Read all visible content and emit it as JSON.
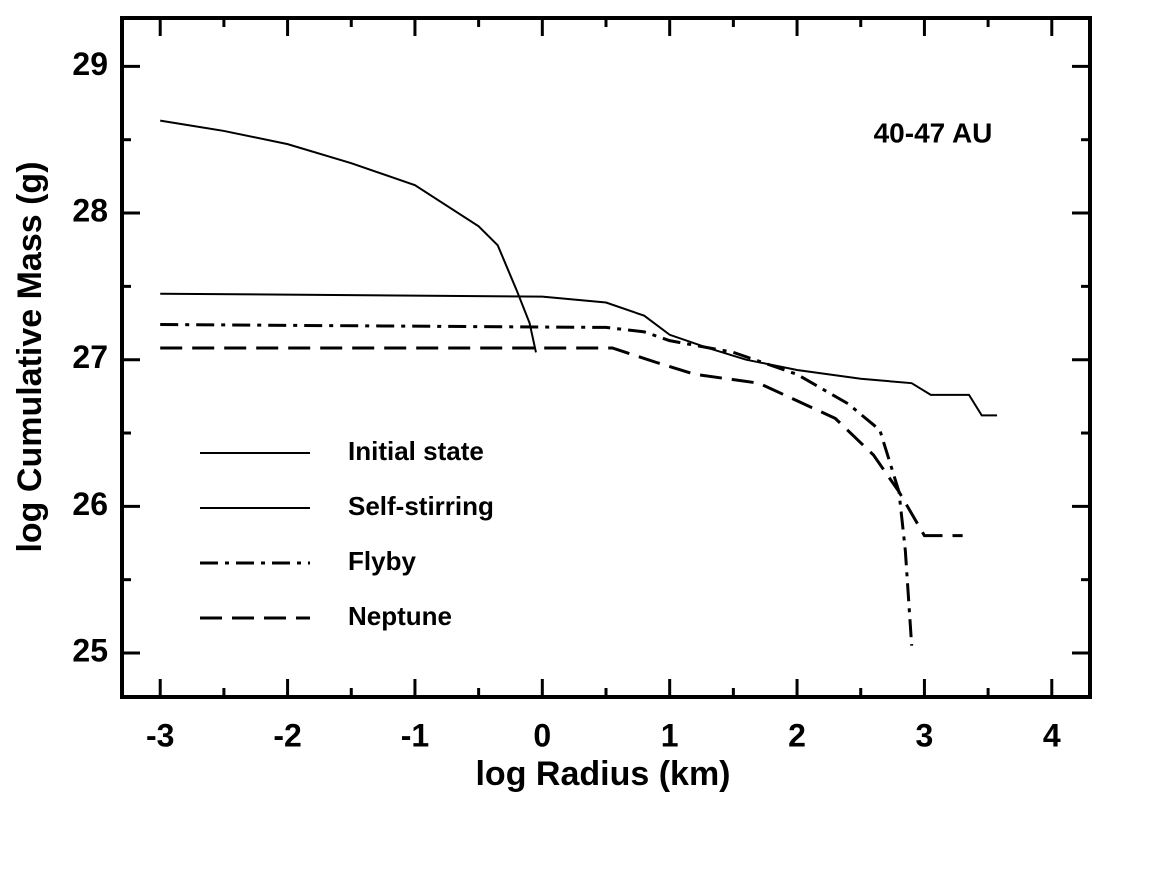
{
  "chart_data": {
    "type": "line",
    "xlabel": "log Radius (km)",
    "ylabel": "log Cumulative Mass (g)",
    "annotation": "40-47 AU",
    "xlim": [
      -3.3,
      4.3
    ],
    "ylim": [
      24.7,
      29.33
    ],
    "xticks": [
      -3,
      -2,
      -1,
      0,
      1,
      2,
      3,
      4
    ],
    "yticks": [
      25,
      26,
      27,
      28,
      29
    ],
    "xminor": [
      -2.5,
      -1.5,
      -0.5,
      0.5,
      1.5,
      2.5,
      3.5
    ],
    "yminor": [
      25.5,
      26.5,
      27.5,
      28.5
    ],
    "legend": "lower left",
    "series": [
      {
        "name": "Initial state",
        "color": "#000000",
        "dash": "solid",
        "width": 2,
        "x": [
          -3,
          -2.5,
          -2,
          -1.5,
          -1,
          -0.5,
          -0.35,
          -0.2,
          -0.1,
          -0.05
        ],
        "y": [
          28.63,
          28.56,
          28.47,
          28.34,
          28.19,
          27.91,
          27.78,
          27.47,
          27.25,
          27.05
        ]
      },
      {
        "name": "Self-stirring",
        "color": "#000000",
        "dash": "solid",
        "width": 2,
        "x": [
          -3,
          0,
          0.5,
          0.8,
          1,
          1.3,
          1.6,
          2,
          2.5,
          2.9,
          3.05,
          3.35,
          3.45,
          3.57
        ],
        "y": [
          27.45,
          27.43,
          27.39,
          27.3,
          27.17,
          27.08,
          27.0,
          26.93,
          26.87,
          26.84,
          26.76,
          26.76,
          26.62,
          26.62
        ]
      },
      {
        "name": "Flyby",
        "color": "#000000",
        "dash": "dashdot",
        "width": 3,
        "x": [
          -3,
          0.5,
          0.8,
          1,
          1.5,
          2,
          2.4,
          2.65,
          2.8,
          2.85,
          2.9
        ],
        "y": [
          27.24,
          27.22,
          27.19,
          27.13,
          27.05,
          26.9,
          26.7,
          26.52,
          26.1,
          25.7,
          25.05
        ]
      },
      {
        "name": "Neptune",
        "color": "#000000",
        "dash": "dash",
        "width": 3,
        "x": [
          -3,
          0.55,
          0.9,
          1.2,
          1.7,
          2,
          2.3,
          2.6,
          2.8,
          3.0,
          3.3
        ],
        "y": [
          27.08,
          27.08,
          26.98,
          26.9,
          26.84,
          26.72,
          26.6,
          26.35,
          26.1,
          25.8,
          25.8
        ]
      }
    ]
  }
}
